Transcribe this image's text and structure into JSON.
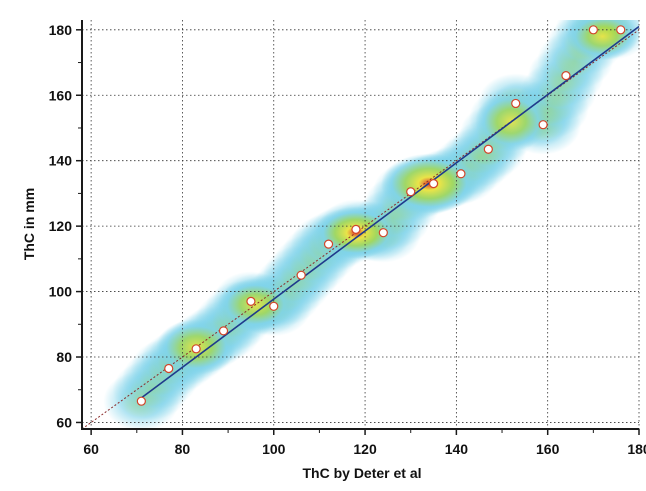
{
  "colors": {
    "regression_line": "#1f3a8c",
    "identity_line": "#8a2a2a",
    "point_edge": "#d2452a",
    "density_low": "#7fd3ea",
    "density_mid": "#a6d84a",
    "density_high": "#f5e63a",
    "density_peak": "#e4321e"
  },
  "chart_data": {
    "type": "scatter",
    "title": "",
    "xlabel": "ThC by Deter et al",
    "ylabel": "ThC in mm",
    "xlim": [
      58,
      180
    ],
    "ylim": [
      58,
      183
    ],
    "xticks": [
      60,
      80,
      100,
      120,
      140,
      160,
      180
    ],
    "yticks": [
      60,
      80,
      100,
      120,
      140,
      160,
      180
    ],
    "grid": true,
    "background": "density-heatmap",
    "series": [
      {
        "points": [
          {
            "x": 71,
            "y": 66.5
          },
          {
            "x": 77,
            "y": 76.5
          },
          {
            "x": 83,
            "y": 82.5
          },
          {
            "x": 89,
            "y": 88
          },
          {
            "x": 95,
            "y": 97
          },
          {
            "x": 100,
            "y": 95.5
          },
          {
            "x": 106,
            "y": 105
          },
          {
            "x": 112,
            "y": 114.5
          },
          {
            "x": 118,
            "y": 119
          },
          {
            "x": 124,
            "y": 118
          },
          {
            "x": 130,
            "y": 130.5
          },
          {
            "x": 135,
            "y": 133
          },
          {
            "x": 141,
            "y": 136
          },
          {
            "x": 147,
            "y": 143.5
          },
          {
            "x": 153,
            "y": 157.5
          },
          {
            "x": 159,
            "y": 151
          },
          {
            "x": 164,
            "y": 166
          },
          {
            "x": 170,
            "y": 180
          },
          {
            "x": 176,
            "y": 180
          }
        ]
      }
    ],
    "lines": [
      {
        "kind": "regression",
        "from": [
          71,
          67.5
        ],
        "to": [
          180,
          181
        ]
      },
      {
        "kind": "identity",
        "from": [
          58,
          58
        ],
        "to": [
          180,
          180
        ]
      }
    ]
  }
}
